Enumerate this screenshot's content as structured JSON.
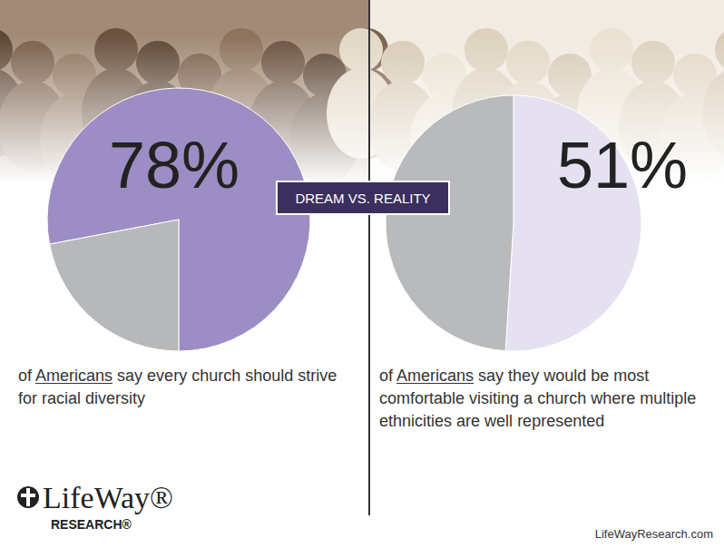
{
  "badge": "DREAM VS. REALITY",
  "logo": {
    "name": "LifeWay®",
    "subtitle": "RESEARCH®"
  },
  "url": "LifeWayResearch.com",
  "chart_data": [
    {
      "type": "pie",
      "values": [
        78,
        22
      ],
      "value_labels": [
        "78%",
        null
      ],
      "colors": [
        "#9c8dc4",
        "#b7b8ba"
      ],
      "caption": "of Americans say every church should strive for racial diversity"
    },
    {
      "type": "pie",
      "values": [
        51,
        49
      ],
      "value_labels": [
        "51%",
        null
      ],
      "colors": [
        "#e6e1f1",
        "#b9babc"
      ],
      "caption": "of Americans say they would be most comfortable visiting a church where multiple ethnicities are well represented"
    }
  ]
}
